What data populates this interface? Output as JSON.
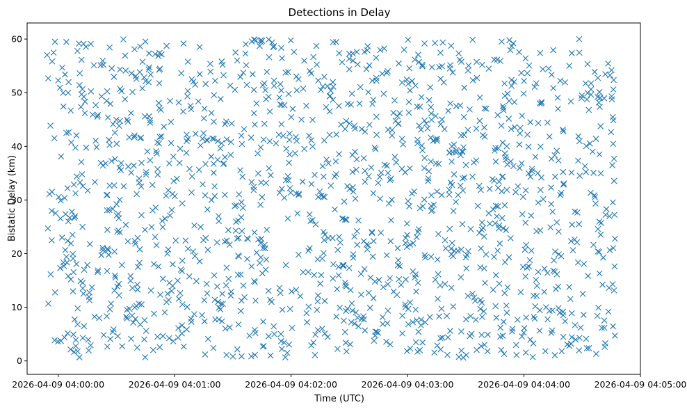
{
  "chart_data": {
    "type": "scatter",
    "title": "Detections in Delay",
    "xlabel": "Time (UTC)",
    "ylabel": "Bistatic Delay (km)",
    "marker": "x",
    "color": "#1f77b4",
    "grid": false,
    "xlim_seconds": [
      -16,
      300
    ],
    "ylim": [
      -2.5,
      63
    ],
    "x_ticks": [
      {
        "t": 0,
        "label": "2026-04-09 04:00:00"
      },
      {
        "t": 60,
        "label": "2026-04-09 04:01:00"
      },
      {
        "t": 120,
        "label": "2026-04-09 04:02:00"
      },
      {
        "t": 180,
        "label": "2026-04-09 04:03:00"
      },
      {
        "t": 240,
        "label": "2026-04-09 04:04:00"
      },
      {
        "t": 300,
        "label": "2026-04-09 04:05:00"
      }
    ],
    "y_ticks": [
      0,
      10,
      20,
      30,
      40,
      50,
      60
    ],
    "time_range": [
      "2026-04-09 03:59:54",
      "2026-04-09 04:04:47"
    ],
    "delay_range_km": [
      0.5,
      60
    ],
    "point_count": 1500
  }
}
